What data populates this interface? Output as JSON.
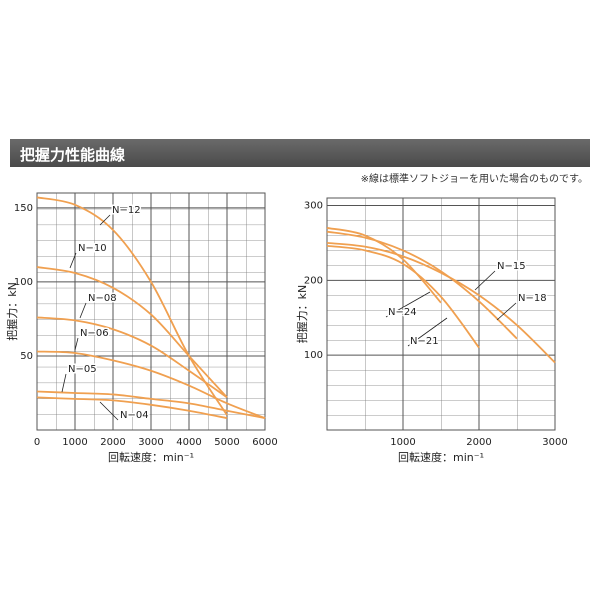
{
  "header": {
    "title": "把握力性能曲線",
    "note": "※線は標準ソフトジョーを用いた場合のものです。"
  },
  "chart_data": [
    {
      "type": "line",
      "x_label": "回転速度：min⁻¹",
      "y_label": "把握力：kN",
      "x": [
        0,
        1000,
        2000,
        3000,
        4000,
        5000,
        6000
      ],
      "xlim": [
        0,
        6000
      ],
      "xticks": [
        0,
        1000,
        2000,
        3000,
        4000,
        5000,
        6000
      ],
      "ylim": [
        0,
        160
      ],
      "yticks": [
        50,
        100,
        150
      ],
      "grid": true,
      "series": [
        {
          "name": "N−12",
          "color": "#f0a050",
          "values": [
            157,
            152,
            135,
            100,
            50,
            10,
            null
          ]
        },
        {
          "name": "N−10",
          "color": "#f0a050",
          "values": [
            110,
            106,
            96,
            78,
            50,
            22,
            null
          ]
        },
        {
          "name": "N−08",
          "color": "#f0a050",
          "values": [
            76,
            74,
            68,
            57,
            40,
            22,
            null
          ]
        },
        {
          "name": "N−06",
          "color": "#f0a050",
          "values": [
            53,
            52,
            47,
            40,
            30,
            18,
            8
          ]
        },
        {
          "name": "N−05",
          "color": "#f0a050",
          "values": [
            26,
            25,
            24,
            21,
            18,
            13,
            8
          ]
        },
        {
          "name": "N−04",
          "color": "#f0a050",
          "values": [
            22,
            21,
            20,
            17,
            13,
            8,
            null
          ]
        }
      ]
    },
    {
      "type": "line",
      "x_label": "回転速度：min⁻¹",
      "y_label": "把握力：kN",
      "x": [
        0,
        500,
        1000,
        1500,
        2000,
        2500,
        3000
      ],
      "xlim": [
        0,
        3000
      ],
      "xticks": [
        1000,
        2000,
        3000
      ],
      "ylim": [
        0,
        310
      ],
      "yticks": [
        100,
        200,
        300
      ],
      "grid": true,
      "series": [
        {
          "name": "N−15",
          "color": "#f0a050",
          "values": [
            250,
            245,
            232,
            210,
            180,
            140,
            90
          ]
        },
        {
          "name": "N−18",
          "color": "#f0a050",
          "values": [
            265,
            257,
            240,
            212,
            172,
            122,
            null
          ]
        },
        {
          "name": "N−24",
          "color": "#f0a050",
          "values": [
            270,
            260,
            228,
            170,
            null,
            null,
            null
          ]
        },
        {
          "name": "N−21",
          "color": "#f0a050",
          "values": [
            246,
            240,
            222,
            178,
            110,
            null,
            null
          ]
        }
      ]
    }
  ]
}
